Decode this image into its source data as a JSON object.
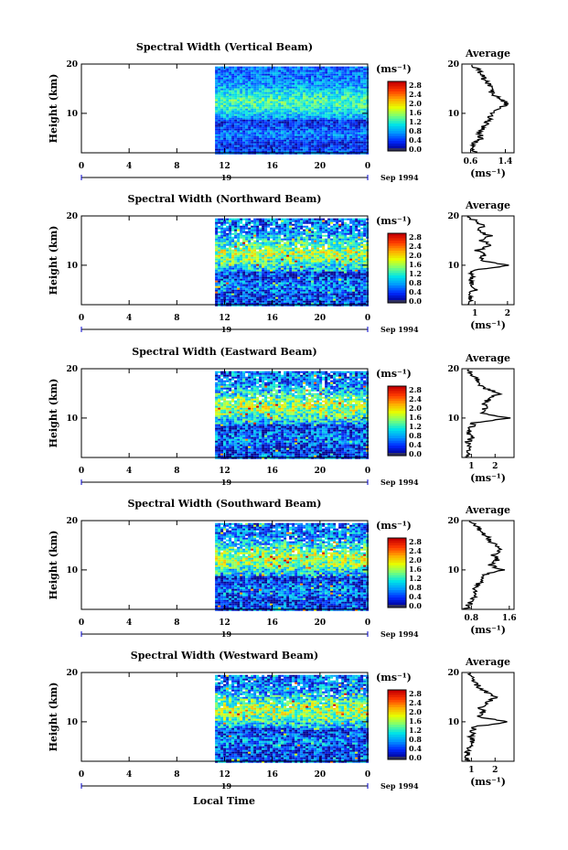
{
  "figure": {
    "xlabel": "Local Time",
    "day_label": "19",
    "month_label": "Sep 1994",
    "ylabel": "Height (km)",
    "unit_label": "(ms⁻¹)",
    "average_label": "Average",
    "average_xlabel": "(ms⁻¹)"
  },
  "colorbar": {
    "tick_labels": [
      "2.8",
      "2.4",
      "2.0",
      "1.6",
      "1.2",
      "0.8",
      "0.4",
      "0.0"
    ],
    "colors": [
      "#ff0000",
      "#ff8000",
      "#ffff00",
      "#80ff80",
      "#00e0e0",
      "#0080ff",
      "#0000e0",
      "#202080"
    ]
  },
  "chart_data": [
    {
      "type": "heatmap",
      "title": "Spectral Width (Vertical Beam)",
      "xlabel": "Local Time",
      "ylabel": "Height (km)",
      "xlim": [
        0,
        24
      ],
      "ylim": [
        2,
        20
      ],
      "xticks": [
        "0",
        "4",
        "8",
        "12",
        "16",
        "20",
        "0"
      ],
      "yticks": [
        "20",
        "10"
      ],
      "data_start_hour": 11.2,
      "data_top_km": 19.5,
      "colorbar_range": [
        0.0,
        2.8
      ],
      "average_profile": {
        "xticks": [
          "0.6",
          "1.4"
        ],
        "xlim": [
          0.4,
          1.6
        ],
        "height_km": [
          2,
          3,
          4,
          5,
          6,
          7,
          8,
          9,
          10,
          11,
          12,
          13,
          14,
          15,
          16,
          17,
          18,
          19,
          20
        ],
        "values": [
          0.75,
          0.6,
          0.7,
          0.85,
          0.8,
          0.9,
          0.95,
          1.05,
          1.1,
          1.3,
          1.45,
          1.25,
          1.1,
          1.05,
          1.0,
          0.9,
          0.85,
          0.75,
          0.6
        ]
      }
    },
    {
      "type": "heatmap",
      "title": "Spectral Width (Northward Beam)",
      "xlabel": "Local Time",
      "ylabel": "Height (km)",
      "xlim": [
        0,
        24
      ],
      "ylim": [
        2,
        20
      ],
      "xticks": [
        "0",
        "4",
        "8",
        "12",
        "16",
        "20",
        "0"
      ],
      "yticks": [
        "20",
        "10"
      ],
      "data_start_hour": 11.2,
      "data_top_km": 19.5,
      "colorbar_range": [
        0.0,
        2.8
      ],
      "average_profile": {
        "xticks": [
          "1",
          "2"
        ],
        "xlim": [
          0.6,
          2.2
        ],
        "height_km": [
          2,
          3,
          4,
          5,
          6,
          7,
          8,
          9,
          10,
          11,
          12,
          13,
          14,
          15,
          16,
          17,
          18,
          19,
          20
        ],
        "values": [
          0.8,
          0.9,
          0.85,
          1.0,
          0.9,
          0.85,
          0.9,
          0.95,
          2.05,
          1.1,
          1.3,
          1.05,
          1.5,
          1.2,
          1.45,
          1.1,
          1.3,
          1.0,
          0.8
        ]
      }
    },
    {
      "type": "heatmap",
      "title": "Spectral Width (Eastward Beam)",
      "xlabel": "Local Time",
      "ylabel": "Height (km)",
      "xlim": [
        0,
        24
      ],
      "ylim": [
        2,
        20
      ],
      "xticks": [
        "0",
        "4",
        "8",
        "12",
        "16",
        "20",
        "0"
      ],
      "yticks": [
        "20",
        "10"
      ],
      "data_start_hour": 11.2,
      "data_top_km": 19.5,
      "colorbar_range": [
        0.0,
        2.8
      ],
      "average_profile": {
        "xticks": [
          "1",
          "2"
        ],
        "xlim": [
          0.6,
          2.8
        ],
        "height_km": [
          2,
          3,
          4,
          5,
          6,
          7,
          8,
          9,
          10,
          11,
          12,
          13,
          14,
          15,
          16,
          17,
          18,
          19,
          20
        ],
        "values": [
          0.85,
          0.8,
          0.9,
          0.85,
          1.0,
          0.9,
          1.0,
          1.1,
          2.6,
          1.4,
          1.6,
          1.5,
          1.8,
          2.2,
          1.6,
          1.3,
          1.2,
          1.0,
          0.8
        ]
      }
    },
    {
      "type": "heatmap",
      "title": "Spectral Width (Southward Beam)",
      "xlabel": "Local Time",
      "ylabel": "Height (km)",
      "xlim": [
        0,
        24
      ],
      "ylim": [
        2,
        20
      ],
      "xticks": [
        "0",
        "4",
        "8",
        "12",
        "16",
        "20",
        "0"
      ],
      "yticks": [
        "20",
        "10"
      ],
      "data_start_hour": 11.2,
      "data_top_km": 19.5,
      "colorbar_range": [
        0.0,
        2.8
      ],
      "average_profile": {
        "xticks": [
          "0.8",
          "1.6"
        ],
        "xlim": [
          0.6,
          1.7
        ],
        "height_km": [
          2,
          3,
          4,
          5,
          6,
          7,
          8,
          9,
          10,
          11,
          12,
          13,
          14,
          15,
          16,
          17,
          18,
          19,
          20
        ],
        "values": [
          0.7,
          0.75,
          0.8,
          0.9,
          0.85,
          0.95,
          1.0,
          1.05,
          1.45,
          1.2,
          1.35,
          1.25,
          1.4,
          1.3,
          1.2,
          1.1,
          1.0,
          0.9,
          0.75
        ]
      }
    },
    {
      "type": "heatmap",
      "title": "Spectral Width (Westward Beam)",
      "xlabel": "Local Time",
      "ylabel": "Height (km)",
      "xlim": [
        0,
        24
      ],
      "ylim": [
        2,
        20
      ],
      "xticks": [
        "0",
        "4",
        "8",
        "12",
        "16",
        "20",
        "0"
      ],
      "yticks": [
        "20",
        "10"
      ],
      "data_start_hour": 11.2,
      "data_top_km": 19.5,
      "colorbar_range": [
        0.0,
        2.8
      ],
      "average_profile": {
        "xticks": [
          "1",
          "2"
        ],
        "xlim": [
          0.6,
          2.8
        ],
        "height_km": [
          2,
          3,
          4,
          5,
          6,
          7,
          8,
          9,
          10,
          11,
          12,
          13,
          14,
          15,
          16,
          17,
          18,
          19,
          20
        ],
        "values": [
          0.85,
          0.8,
          0.85,
          0.9,
          1.0,
          1.0,
          1.05,
          1.1,
          2.6,
          1.3,
          1.5,
          1.4,
          1.7,
          2.0,
          1.6,
          1.3,
          1.2,
          1.0,
          0.85
        ]
      }
    }
  ]
}
